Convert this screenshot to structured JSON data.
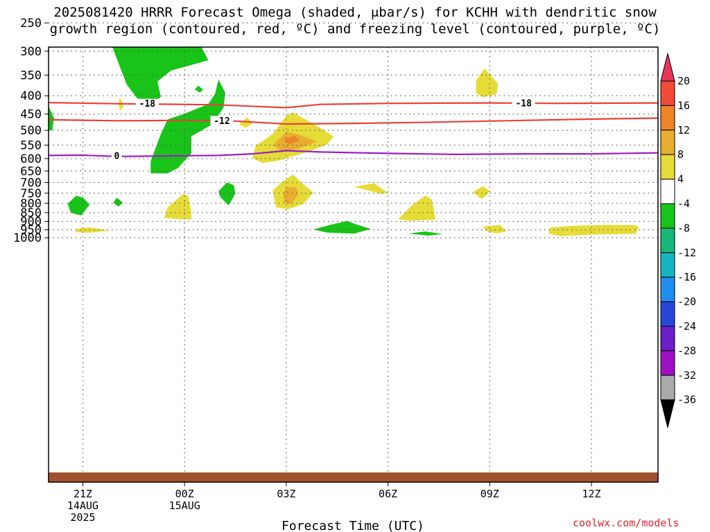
{
  "title": {
    "line1": "2025081420 HRRR Forecast Omega (shaded, μbar/s) for KCHH with dendritic snow",
    "line2": "growth region (contoured, red, ºC) and freezing level (contoured, purple, ºC)"
  },
  "credit": "coolwx.com/models",
  "colors": {
    "ground": "#a0522d",
    "temp_contour": "#e8403a",
    "freezing_contour": "#9a1ec8",
    "grid": "#555555"
  },
  "chart_data": {
    "type": "heatmap",
    "xlabel": "Forecast Time (UTC)",
    "ylabel": "",
    "x_range_hours": [
      -1,
      17
    ],
    "y_range_hPa": [
      1020,
      220
    ],
    "y_scale": "log-pressure",
    "grid": true,
    "x_ticks": [
      {
        "hour": 0,
        "label": "21Z",
        "sub1": "14AUG",
        "sub2": "2025"
      },
      {
        "hour": 3,
        "label": "00Z",
        "sub1": "15AUG",
        "sub2": ""
      },
      {
        "hour": 6,
        "label": "03Z",
        "sub1": "",
        "sub2": ""
      },
      {
        "hour": 9,
        "label": "06Z",
        "sub1": "",
        "sub2": ""
      },
      {
        "hour": 12,
        "label": "09Z",
        "sub1": "",
        "sub2": ""
      },
      {
        "hour": 15,
        "label": "12Z",
        "sub1": "",
        "sub2": ""
      }
    ],
    "y_ticks": [
      "250",
      "300",
      "350",
      "400",
      "450",
      "500",
      "550",
      "600",
      "650",
      "700",
      "750",
      "800",
      "850",
      "900",
      "950",
      "1000"
    ],
    "colorbar": {
      "labels": [
        "20",
        "16",
        "12",
        "8",
        "4",
        "-4",
        "-8",
        "-12",
        "-16",
        "-20",
        "-24",
        "-28",
        "-32",
        "-36"
      ],
      "colors": [
        "#e8345a",
        "#f04a38",
        "#ee8428",
        "#e8ae30",
        "#e6dc38",
        "#ffffff",
        "#18c418",
        "#18b678",
        "#16b4c0",
        "#1e8ef0",
        "#2846d8",
        "#6a1ec8",
        "#9e10c4",
        "#aaaaaa",
        "#000000"
      ]
    },
    "contours": [
      {
        "label": "-18",
        "color": "#e8403a",
        "points": [
          [
            -1,
            418
          ],
          [
            1,
            421
          ],
          [
            4,
            424
          ],
          [
            6,
            432
          ],
          [
            7,
            423
          ],
          [
            9,
            420
          ],
          [
            12,
            419
          ],
          [
            14,
            420
          ],
          [
            17,
            419
          ]
        ],
        "label_positions": [
          [
            1.9,
            421
          ],
          [
            13.0,
            419.5
          ]
        ]
      },
      {
        "label": "-12",
        "color": "#e8403a",
        "points": [
          [
            -1,
            467
          ],
          [
            1,
            470
          ],
          [
            3,
            469
          ],
          [
            4.5,
            471
          ],
          [
            6,
            480
          ],
          [
            8,
            478
          ],
          [
            10,
            475
          ],
          [
            13,
            469
          ],
          [
            15,
            465
          ],
          [
            17,
            462
          ]
        ],
        "label_positions": [
          [
            4.1,
            470
          ]
        ]
      },
      {
        "label": "0",
        "color": "#9a1ec8",
        "points": [
          [
            -1,
            588
          ],
          [
            0,
            587
          ],
          [
            1,
            592
          ],
          [
            3,
            589
          ],
          [
            4,
            588
          ],
          [
            5,
            582
          ],
          [
            6,
            570
          ],
          [
            7,
            575
          ],
          [
            9,
            580
          ],
          [
            11,
            584
          ],
          [
            13,
            582
          ],
          [
            15,
            582
          ],
          [
            17,
            578
          ]
        ],
        "label_positions": [
          [
            1.0,
            590
          ]
        ]
      }
    ],
    "regions": [
      {
        "value": -6,
        "color": "#18c418",
        "points": [
          [
            0.9,
            218
          ],
          [
            2.0,
            218
          ],
          [
            2.1,
            228
          ],
          [
            3.0,
            262
          ],
          [
            3.5,
            292
          ],
          [
            3.7,
            318
          ],
          [
            3.4,
            324
          ],
          [
            2.6,
            340
          ],
          [
            2.2,
            365
          ],
          [
            2.3,
            403
          ],
          [
            2.0,
            425
          ],
          [
            1.6,
            406
          ],
          [
            1.3,
            373
          ],
          [
            1.0,
            315
          ],
          [
            0.8,
            280
          ],
          [
            0.9,
            240
          ]
        ]
      },
      {
        "value": -6,
        "color": "#18c418",
        "points": [
          [
            2.0,
            660
          ],
          [
            2.0,
            610
          ],
          [
            2.3,
            512
          ],
          [
            2.5,
            466
          ],
          [
            3.0,
            449
          ],
          [
            3.7,
            422
          ],
          [
            3.9,
            395
          ],
          [
            4.0,
            360
          ],
          [
            4.2,
            392
          ],
          [
            4.15,
            432
          ],
          [
            3.8,
            482
          ],
          [
            3.2,
            520
          ],
          [
            3.2,
            580
          ],
          [
            2.8,
            638
          ],
          [
            2.5,
            660
          ]
        ]
      },
      {
        "value": -6,
        "color": "#18c418",
        "points": [
          [
            3.3,
            384
          ],
          [
            3.4,
            375
          ],
          [
            3.55,
            384
          ],
          [
            3.45,
            392
          ]
        ]
      },
      {
        "value": -6,
        "color": "#18c418",
        "points": [
          [
            -1.15,
            464
          ],
          [
            -1.0,
            430
          ],
          [
            -0.85,
            462
          ],
          [
            -0.9,
            500
          ],
          [
            -1.05,
            500
          ]
        ]
      },
      {
        "value": -6,
        "color": "#18c418",
        "points": [
          [
            -0.45,
            803
          ],
          [
            -0.2,
            763
          ],
          [
            0,
            771
          ],
          [
            0.2,
            808
          ],
          [
            -0.05,
            866
          ],
          [
            -0.35,
            852
          ]
        ]
      },
      {
        "value": -6,
        "color": "#18c418",
        "points": [
          [
            0.9,
            797
          ],
          [
            1.0,
            772
          ],
          [
            1.18,
            798
          ],
          [
            1.05,
            818
          ]
        ]
      },
      {
        "value": -6,
        "color": "#18c418",
        "points": [
          [
            4.0,
            741
          ],
          [
            4.25,
            700
          ],
          [
            4.45,
            712
          ],
          [
            4.5,
            752
          ],
          [
            4.3,
            812
          ],
          [
            4.05,
            768
          ]
        ]
      },
      {
        "value": -6,
        "color": "#18c418",
        "points": [
          [
            6.8,
            948
          ],
          [
            7.3,
            920
          ],
          [
            7.8,
            897
          ],
          [
            8.0,
            913
          ],
          [
            8.5,
            945
          ],
          [
            8.0,
            974
          ],
          [
            7.2,
            967
          ]
        ]
      },
      {
        "value": -6,
        "color": "#18c418",
        "points": [
          [
            9.6,
            973
          ],
          [
            10.1,
            960
          ],
          [
            10.6,
            975
          ],
          [
            10.2,
            986
          ]
        ]
      },
      {
        "value": 6,
        "color": "#e6dc38",
        "points": [
          [
            5.0,
            598
          ],
          [
            5.1,
            552
          ],
          [
            5.6,
            512
          ],
          [
            6.0,
            455
          ],
          [
            6.2,
            445
          ],
          [
            7.0,
            492
          ],
          [
            7.4,
            520
          ],
          [
            7.2,
            548
          ],
          [
            6.6,
            576
          ],
          [
            5.8,
            607
          ],
          [
            5.3,
            617
          ]
        ]
      },
      {
        "value": 10,
        "color": "#e8ae30",
        "points": [
          [
            5.6,
            550
          ],
          [
            6.0,
            505
          ],
          [
            6.4,
            515
          ],
          [
            6.9,
            538
          ],
          [
            6.3,
            565
          ],
          [
            5.9,
            574
          ]
        ]
      },
      {
        "value": 14,
        "color": "#ee8428",
        "points": [
          [
            5.9,
            530
          ],
          [
            6.25,
            518
          ],
          [
            6.4,
            533
          ],
          [
            6.1,
            547
          ]
        ]
      },
      {
        "value": 6,
        "color": "#e6dc38",
        "points": [
          [
            4.6,
            480
          ],
          [
            4.85,
            460
          ],
          [
            5.0,
            478
          ],
          [
            4.8,
            492
          ]
        ]
      },
      {
        "value": 6,
        "color": "#e6dc38",
        "points": [
          [
            1.05,
            420
          ],
          [
            1.1,
            404
          ],
          [
            1.2,
            428
          ],
          [
            1.1,
            440
          ]
        ]
      },
      {
        "value": 6,
        "color": "#e6dc38",
        "points": [
          [
            5.6,
            738
          ],
          [
            5.85,
            700
          ],
          [
            6.2,
            665
          ],
          [
            6.5,
            707
          ],
          [
            6.8,
            747
          ],
          [
            6.5,
            805
          ],
          [
            6.05,
            832
          ],
          [
            5.7,
            822
          ]
        ]
      },
      {
        "value": 10,
        "color": "#e8ae30",
        "points": [
          [
            5.9,
            760
          ],
          [
            6.0,
            718
          ],
          [
            6.3,
            723
          ],
          [
            6.35,
            760
          ],
          [
            6.15,
            804
          ],
          [
            5.95,
            800
          ]
        ]
      },
      {
        "value": 6,
        "color": "#e6dc38",
        "points": [
          [
            2.4,
            880
          ],
          [
            2.5,
            822
          ],
          [
            2.95,
            755
          ],
          [
            3.1,
            762
          ],
          [
            3.2,
            846
          ],
          [
            3.2,
            888
          ],
          [
            2.9,
            888
          ]
        ]
      },
      {
        "value": 6,
        "color": "#e6dc38",
        "points": [
          [
            8.0,
            720
          ],
          [
            8.6,
            703
          ],
          [
            8.8,
            727
          ],
          [
            9.0,
            748
          ],
          [
            8.8,
            754
          ]
        ]
      },
      {
        "value": 6,
        "color": "#e6dc38",
        "points": [
          [
            9.3,
            887
          ],
          [
            9.7,
            812
          ],
          [
            10.1,
            762
          ],
          [
            10.3,
            782
          ],
          [
            10.4,
            890
          ],
          [
            9.6,
            896
          ]
        ]
      },
      {
        "value": 6,
        "color": "#e6dc38",
        "points": [
          [
            11.5,
            745
          ],
          [
            11.8,
            717
          ],
          [
            12.0,
            738
          ],
          [
            11.9,
            762
          ],
          [
            11.75,
            778
          ]
        ]
      },
      {
        "value": 6,
        "color": "#e6dc38",
        "points": [
          [
            11.6,
            393
          ],
          [
            11.6,
            362
          ],
          [
            11.85,
            335
          ],
          [
            12.25,
            370
          ],
          [
            12.2,
            396
          ],
          [
            11.8,
            404
          ]
        ]
      },
      {
        "value": 6,
        "color": "#e6dc38",
        "points": [
          [
            11.8,
            930
          ],
          [
            12.3,
            920
          ],
          [
            12.5,
            960
          ],
          [
            12.2,
            972
          ],
          [
            11.9,
            958
          ]
        ]
      },
      {
        "value": 6,
        "color": "#e6dc38",
        "points": [
          [
            13.8,
            935
          ],
          [
            14.5,
            925
          ],
          [
            15.5,
            920
          ],
          [
            16.3,
            922
          ],
          [
            16.4,
            935
          ],
          [
            16.3,
            975
          ],
          [
            15.0,
            980
          ],
          [
            14.1,
            990
          ],
          [
            13.75,
            975
          ],
          [
            13.75,
            955
          ]
        ]
      },
      {
        "value": 6,
        "color": "#e6dc38",
        "points": [
          [
            -0.2,
            945
          ],
          [
            0.2,
            935
          ],
          [
            0.8,
            955
          ],
          [
            0.2,
            968
          ],
          [
            -0.2,
            965
          ]
        ]
      }
    ]
  }
}
